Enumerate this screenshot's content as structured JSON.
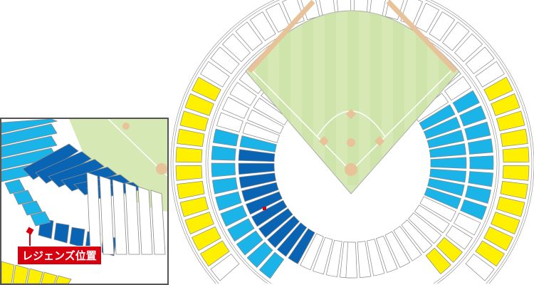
{
  "inset": {
    "label": "レジェンズ位置"
  },
  "colors": {
    "field_green": "#d6e8b4",
    "field_stripe": "#c8e0a0",
    "warning_track": "#e8c39a",
    "yellow_seats": "#fff000",
    "light_blue_seats": "#1ab4e8",
    "dark_blue_seats": "#0a64b4",
    "marker_red": "#d7000f",
    "outline": "#888888"
  }
}
